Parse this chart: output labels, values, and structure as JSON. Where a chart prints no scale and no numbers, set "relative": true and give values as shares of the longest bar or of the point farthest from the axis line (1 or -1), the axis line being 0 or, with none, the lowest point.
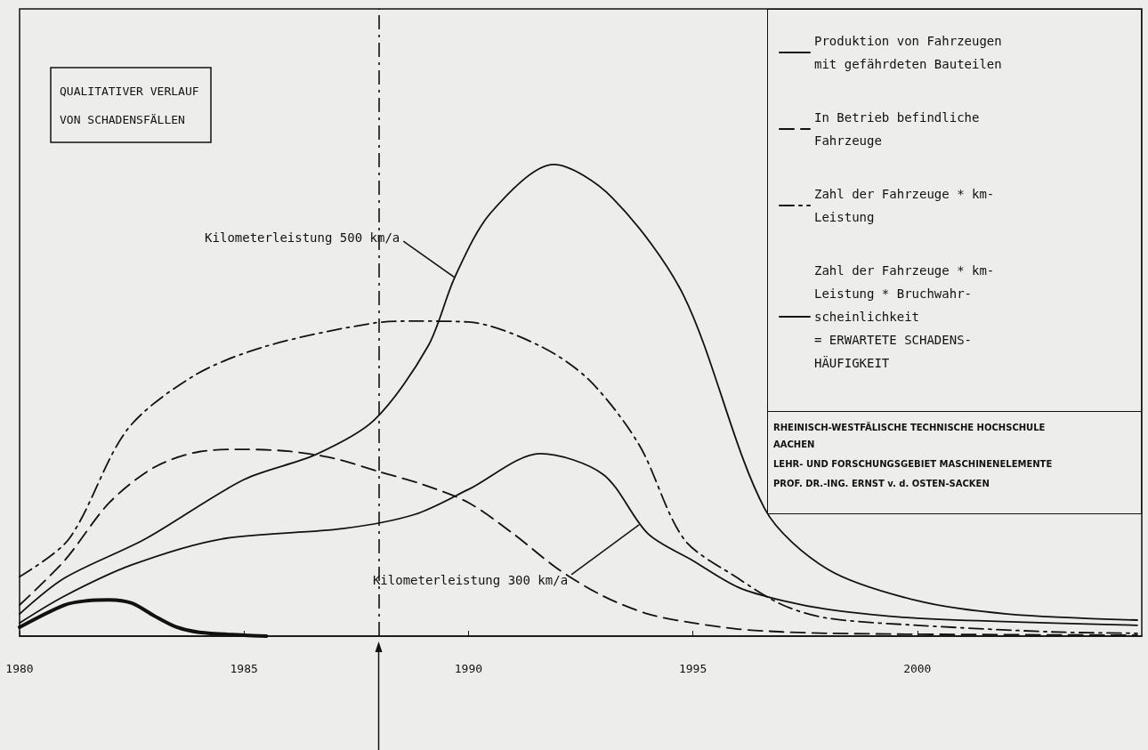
{
  "chart_data": {
    "type": "line",
    "title": "QUALITATIVER VERLAUF\nVON SCHADENSFÄLLEN",
    "relative": true,
    "xlim": [
      1980,
      2005
    ],
    "xticks": [
      1980,
      1985,
      1990,
      1995,
      2000
    ],
    "legend": "top right",
    "grid": false,
    "marker": "none",
    "series": [
      {
        "name": "Produktion von Fahrzeugen\nmit gefährdeten Bauteilen",
        "color": "#111111",
        "line_style": "solid",
        "x": [
          1980,
          1981,
          1981.5,
          1982,
          1982.5,
          1983,
          1983.5,
          1984,
          1985,
          1985.5
        ],
        "values": [
          0.019,
          0.066,
          0.075,
          0.077,
          0.07,
          0.043,
          0.019,
          0.008,
          0.002,
          0
        ]
      },
      {
        "name": "In Betrieb befindliche\nFahrzeuge",
        "color": "#111111",
        "line_style": "dashed",
        "x": [
          1980,
          1981,
          1982,
          1983,
          1984,
          1985,
          1986,
          1987,
          1988,
          1989,
          1990,
          1991,
          1992,
          1993,
          1994,
          1995,
          1996,
          1997,
          1998,
          2000,
          2004.9
        ],
        "values": [
          0.066,
          0.16,
          0.283,
          0.358,
          0.391,
          0.396,
          0.392,
          0.377,
          0.349,
          0.321,
          0.283,
          0.217,
          0.142,
          0.085,
          0.047,
          0.028,
          0.015,
          0.009,
          0.006,
          0.004,
          0.002
        ]
      },
      {
        "name": "Zahl der Fahrzeuge * km-\nLeistung",
        "color": "#111111",
        "line_style": "dashdot",
        "x": [
          1980,
          1981.1,
          1982.4,
          1983.9,
          1985.5,
          1987.9,
          1988.8,
          1990,
          1991.6,
          1992.7,
          1993.8,
          1994.8,
          1996,
          1997,
          1998,
          2000,
          2003,
          2004.9
        ],
        "values": [
          0.126,
          0.206,
          0.438,
          0.553,
          0.615,
          0.664,
          0.668,
          0.666,
          0.615,
          0.542,
          0.406,
          0.206,
          0.123,
          0.066,
          0.038,
          0.023,
          0.009,
          0.006
        ]
      },
      {
        "name": "Zahl der Fahrzeuge * km-\nLeistung * Bruchwahr-\nscheinlichkeit\n= ERWARTETE SCHADENS-\nHÄUFIGKEIT",
        "color": "#111111",
        "line_style": "solid",
        "x": [
          1980,
          1981,
          1982.8,
          1985,
          1986.6,
          1987.9,
          1989.1,
          1989.7,
          1990.5,
          1991.9,
          1993.2,
          1994.8,
          1996.6,
          1998,
          2000,
          2002,
          2004.9
        ],
        "values": [
          0.047,
          0.123,
          0.206,
          0.332,
          0.385,
          0.458,
          0.615,
          0.762,
          0.898,
          1,
          0.93,
          0.721,
          0.27,
          0.142,
          0.075,
          0.047,
          0.034
        ]
      },
      {
        "color": "#111111",
        "line_style": "solid",
        "x": [
          1980,
          1981,
          1982.5,
          1984.5,
          1987.2,
          1988.8,
          1990,
          1991.6,
          1993,
          1994,
          1995,
          1996,
          1997,
          1998,
          2000,
          2004.9
        ],
        "values": [
          0.028,
          0.085,
          0.151,
          0.206,
          0.228,
          0.258,
          0.311,
          0.387,
          0.343,
          0.217,
          0.16,
          0.104,
          0.075,
          0.057,
          0.038,
          0.023
        ]
      }
    ],
    "ref_lines": [
      {
        "axis": "x",
        "value": 1988,
        "line_style": "dashdot"
      }
    ],
    "annotations": [
      {
        "text": "Kilometerleistung 500 km/a",
        "x": 1989.7,
        "y": 0.76
      },
      {
        "text": "Kilometerleistung 300 km/a",
        "x": 1993.8,
        "y": 0.236
      },
      "RHEINISCH-WESTFÄLISCHE TECHNISCHE HOCHSCHULE\nAACHEN",
      "LEHR- UND FORSCHUNGSGEBIET MASCHINENELEMENTE",
      "PROF. DR.-ING. ERNST v. d. OSTEN-SACKEN"
    ]
  }
}
